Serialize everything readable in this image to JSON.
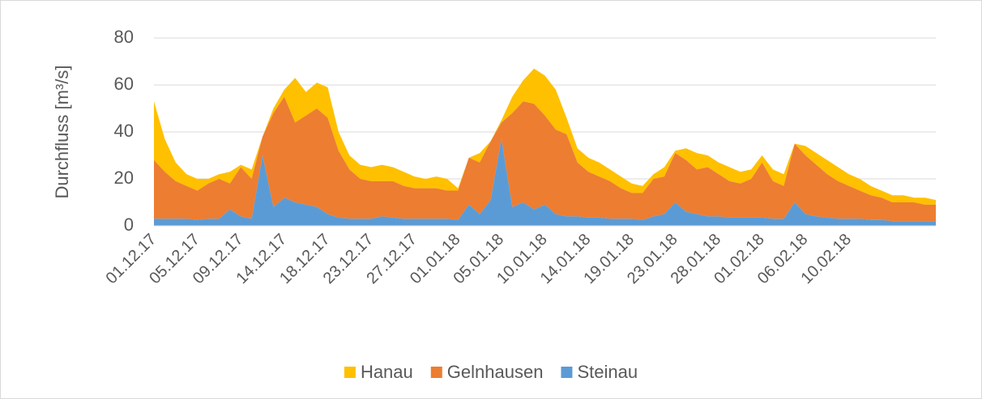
{
  "chart_data": {
    "type": "stacked_area",
    "y_label": "Durchfluss [m³/s]",
    "categories": [
      "01.12.17",
      null,
      null,
      null,
      "05.12.17",
      null,
      null,
      null,
      "09.12.17",
      null,
      null,
      null,
      "14.12.17",
      null,
      null,
      null,
      "18.12.17",
      null,
      null,
      null,
      "23.12.17",
      null,
      null,
      null,
      "27.12.17",
      null,
      null,
      null,
      "01.01.18",
      null,
      null,
      null,
      "05.01.18",
      null,
      null,
      null,
      "10.01.18",
      null,
      null,
      null,
      "14.01.18",
      null,
      null,
      null,
      "19.01.18",
      null,
      null,
      null,
      "23.01.18",
      null,
      null,
      null,
      "28.01.18",
      null,
      null,
      null,
      "01.02.18",
      null,
      null,
      null,
      "06.02.18",
      null,
      null,
      null,
      "10.02.18",
      null,
      null,
      null,
      null,
      null,
      null,
      null,
      null
    ],
    "series": [
      {
        "name": "Hanau",
        "color": "#ffc000",
        "values": [
          25,
          14,
          8,
          5,
          5,
          2,
          2,
          5,
          1,
          4,
          0,
          2,
          3,
          19,
          10,
          11,
          13,
          8,
          6,
          6,
          6,
          7,
          6,
          6,
          5,
          4,
          5,
          5,
          1,
          0,
          4,
          0,
          1,
          7,
          9,
          15,
          17,
          17,
          7,
          6,
          6,
          6,
          5,
          5,
          4,
          3,
          2,
          4,
          1,
          5,
          7,
          5,
          5,
          6,
          5,
          4,
          3,
          5,
          5,
          0,
          4,
          5,
          6,
          6,
          5,
          5,
          4,
          3,
          3,
          3,
          2,
          3,
          2
        ]
      },
      {
        "name": "Gelnhausen",
        "color": "#ed7d31",
        "values": [
          25,
          20,
          16,
          14,
          12.5,
          15,
          17,
          11,
          21,
          17,
          8,
          40,
          43,
          34,
          38,
          42,
          41,
          28.5,
          21,
          17,
          16,
          15,
          15.5,
          14,
          13,
          13,
          13,
          12,
          12.5,
          20,
          22,
          25,
          7,
          40,
          43,
          45,
          38,
          36,
          35,
          23,
          19.5,
          17.5,
          16,
          13,
          11,
          11.5,
          16,
          16,
          21,
          22,
          19,
          21,
          18,
          15.5,
          14.5,
          16.5,
          23.5,
          16,
          14,
          25,
          25,
          22,
          18.5,
          16,
          14,
          12,
          10.5,
          9.5,
          8,
          8,
          8,
          7,
          7
        ]
      },
      {
        "name": "Steinau",
        "color": "#5b9bd5",
        "values": [
          3,
          3,
          3,
          3,
          2.5,
          3,
          3,
          7,
          4,
          3,
          30,
          8,
          12,
          10,
          9,
          8,
          5,
          3.5,
          3,
          3,
          3,
          4,
          3.5,
          3,
          3,
          3,
          3,
          3,
          2.5,
          9,
          5,
          11,
          37,
          8,
          10,
          7,
          9,
          5,
          4,
          4,
          3.5,
          3.5,
          3,
          3,
          3,
          2.5,
          4,
          5,
          10,
          6,
          5,
          4,
          4,
          3.5,
          3.5,
          3.5,
          3.5,
          3,
          3,
          10,
          5,
          4,
          3.5,
          3,
          3,
          3,
          2.5,
          2.5,
          2,
          2,
          2,
          2,
          2
        ]
      }
    ],
    "ylim": [
      0,
      80
    ],
    "yticks": [
      0,
      20,
      40,
      60,
      80
    ],
    "grid": true,
    "legend": "bottom"
  }
}
